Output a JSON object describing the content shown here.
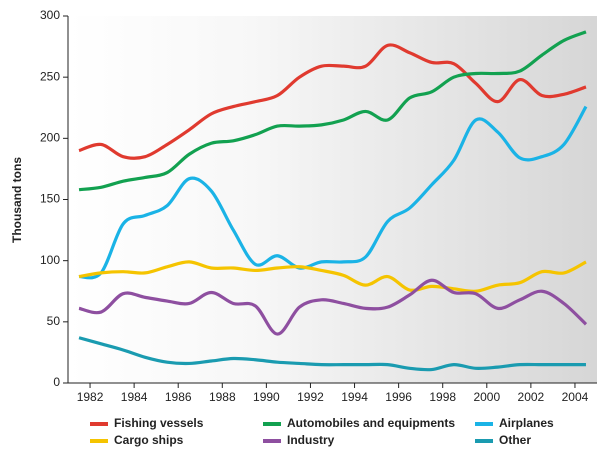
{
  "chart_data": {
    "type": "line",
    "y_label": "Thousand tons",
    "x": [
      1981.5,
      1982.5,
      1983.5,
      1984.5,
      1985.5,
      1986.5,
      1987.5,
      1988.5,
      1989.5,
      1990.5,
      1991.5,
      1992.5,
      1993.5,
      1994.5,
      1995.5,
      1996.5,
      1997.5,
      1998.5,
      1999.5,
      2000.5,
      2001.5,
      2002.5,
      2003.5,
      2004.5
    ],
    "series": [
      {
        "name": "Fishing vessels",
        "color": "#e03a2f",
        "values": [
          190,
          195,
          185,
          185,
          195,
          207,
          220,
          226,
          230,
          235,
          250,
          259,
          259,
          259,
          276,
          270,
          262,
          261,
          245,
          230,
          248,
          235,
          236,
          242
        ]
      },
      {
        "name": "Automobiles and equipments",
        "color": "#12a150",
        "values": [
          158,
          160,
          165,
          168,
          172,
          187,
          196,
          198,
          203,
          210,
          210,
          211,
          215,
          222,
          215,
          233,
          238,
          250,
          253,
          253,
          255,
          268,
          280,
          287
        ]
      },
      {
        "name": "Airplanes",
        "color": "#1ab3e6",
        "values": [
          87,
          90,
          130,
          137,
          145,
          167,
          157,
          125,
          97,
          104,
          94,
          99,
          99,
          103,
          132,
          143,
          162,
          182,
          215,
          205,
          184,
          185,
          195,
          226
        ]
      },
      {
        "name": "Cargo ships",
        "color": "#f5c400",
        "values": [
          87,
          90,
          91,
          90,
          95,
          99,
          94,
          94,
          92,
          94,
          95,
          92,
          88,
          80,
          87,
          76,
          79,
          77,
          75,
          80,
          82,
          91,
          90,
          99
        ]
      },
      {
        "name": "Industry",
        "color": "#8e4fa0",
        "values": [
          61,
          58,
          73,
          70,
          67,
          65,
          74,
          65,
          63,
          40,
          62,
          68,
          65,
          61,
          62,
          72,
          84,
          74,
          73,
          61,
          68,
          75,
          65,
          48
        ]
      },
      {
        "name": "Other",
        "color": "#1a9bb0",
        "values": [
          37,
          32,
          27,
          21,
          17,
          16,
          18,
          20,
          19,
          17,
          16,
          15,
          15,
          15,
          15,
          12,
          11,
          15,
          12,
          13,
          15,
          15,
          15,
          15
        ]
      }
    ],
    "xlim": [
      1981,
      2005
    ],
    "xticks": [
      1982,
      1984,
      1986,
      1988,
      1990,
      1992,
      1994,
      1996,
      1998,
      2000,
      2002,
      2004
    ],
    "ylim": [
      0,
      300
    ],
    "yticks": [
      0,
      50,
      100,
      150,
      200,
      250,
      300
    ]
  }
}
